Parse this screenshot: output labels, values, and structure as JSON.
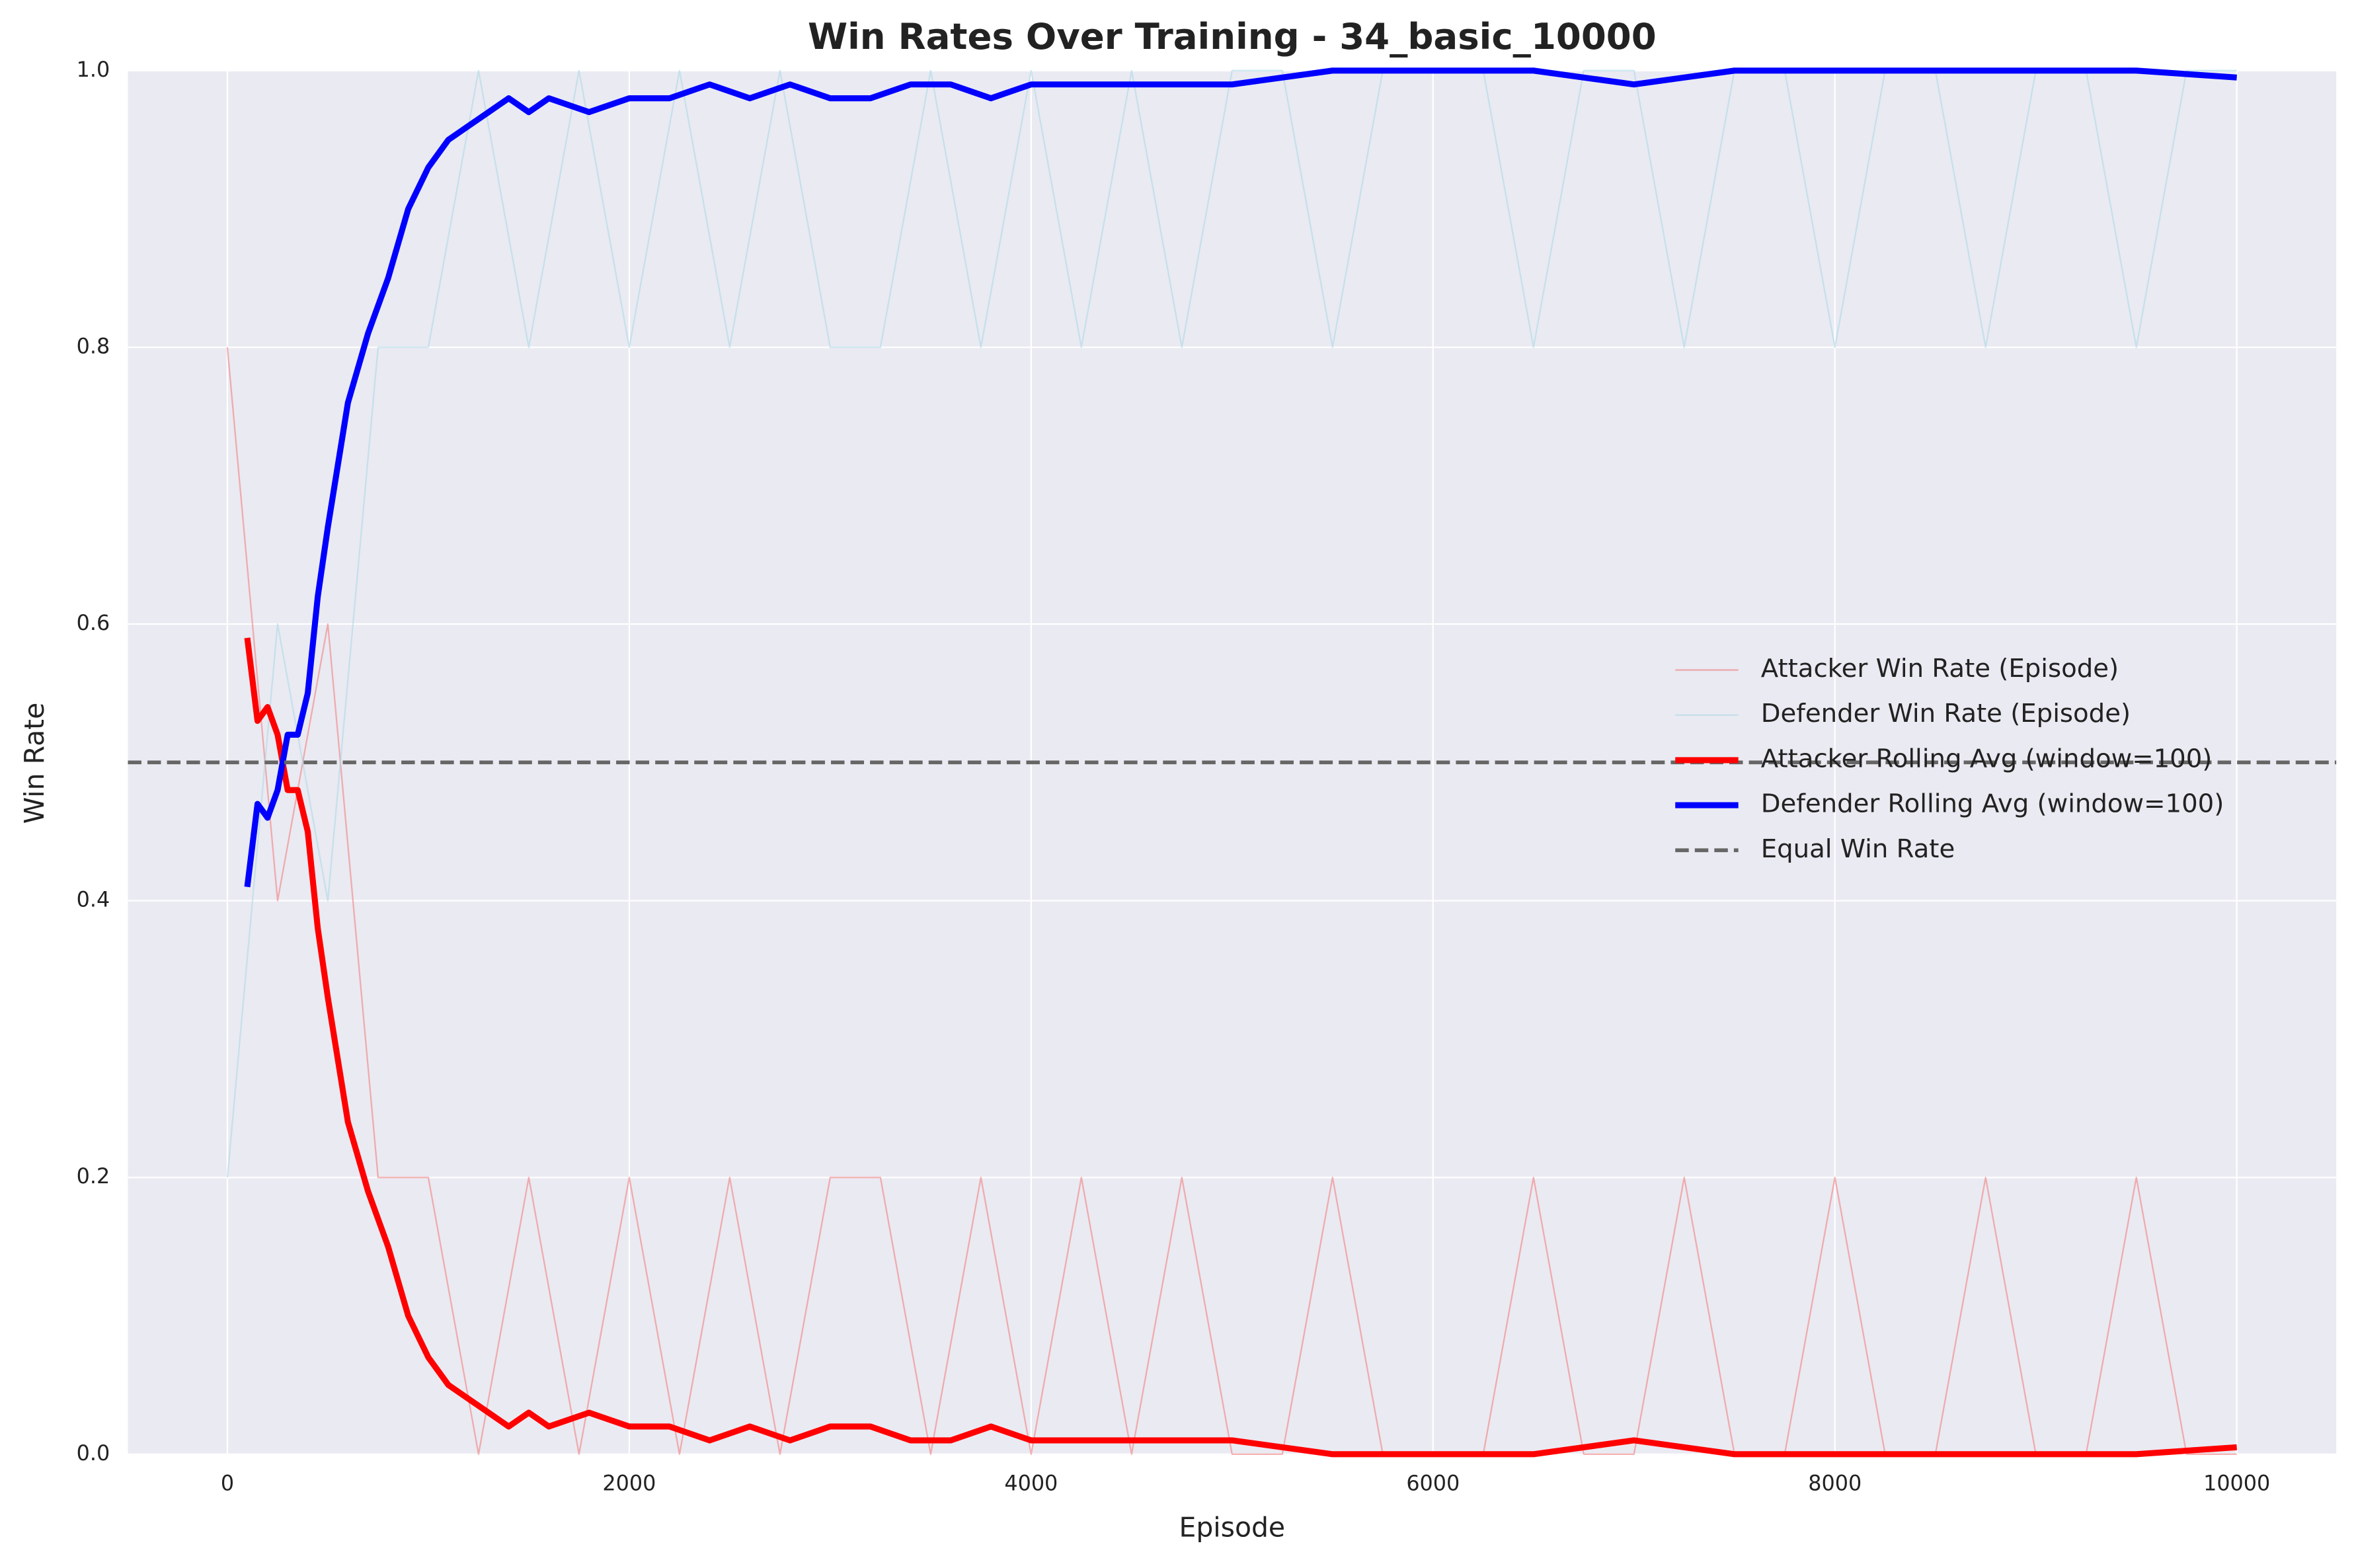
{
  "chart_data": {
    "type": "line",
    "title": "Win Rates Over Training - 34_basic_10000",
    "xlabel": "Episode",
    "ylabel": "Win Rate",
    "xlim": [
      -495,
      10495
    ],
    "xticks": [
      0,
      2000,
      4000,
      6000,
      8000,
      10000
    ],
    "ylim": [
      0,
      1
    ],
    "yticks": [
      {
        "value": 0,
        "label": "0.0"
      },
      {
        "value": 0.2,
        "label": "0.2"
      },
      {
        "value": 0.4,
        "label": "0.4"
      },
      {
        "value": 0.6,
        "label": "0.6"
      },
      {
        "value": 0.8,
        "label": "0.8"
      },
      {
        "value": 1,
        "label": "1.0"
      }
    ],
    "grid": true,
    "legend": "center right",
    "series": [
      {
        "name": "Attacker Win Rate (Episode)",
        "color": "#f08080",
        "width": 1,
        "opacity": 0.6,
        "x": [
          0,
          250,
          500,
          750,
          1000,
          1250,
          1500,
          1750,
          2000,
          2250,
          2500,
          2750,
          3000,
          3250,
          3500,
          3750,
          4000,
          4250,
          4500,
          4750,
          5000,
          5250,
          5500,
          5750,
          6000,
          6250,
          6500,
          6750,
          7000,
          7250,
          7500,
          7750,
          8000,
          8250,
          8500,
          8750,
          9000,
          9250,
          9500,
          9750,
          10000
        ],
        "values": [
          0.8,
          0.4,
          0.6,
          0.2,
          0.2,
          0,
          0.2,
          0,
          0.2,
          0,
          0.2,
          0,
          0.2,
          0.2,
          0,
          0.2,
          0,
          0.2,
          0,
          0.2,
          0,
          0,
          0.2,
          0,
          0,
          0,
          0.2,
          0,
          0,
          0.2,
          0,
          0,
          0.2,
          0,
          0,
          0.2,
          0,
          0,
          0.2,
          0,
          0
        ]
      },
      {
        "name": "Defender Win Rate (Episode)",
        "color": "#add8e6",
        "width": 1,
        "opacity": 0.6,
        "x": [
          0,
          250,
          500,
          750,
          1000,
          1250,
          1500,
          1750,
          2000,
          2250,
          2500,
          2750,
          3000,
          3250,
          3500,
          3750,
          4000,
          4250,
          4500,
          4750,
          5000,
          5250,
          5500,
          5750,
          6000,
          6250,
          6500,
          6750,
          7000,
          7250,
          7500,
          7750,
          8000,
          8250,
          8500,
          8750,
          9000,
          9250,
          9500,
          9750,
          10000
        ],
        "values": [
          0.2,
          0.6,
          0.4,
          0.8,
          0.8,
          1,
          0.8,
          1,
          0.8,
          1,
          0.8,
          1,
          0.8,
          0.8,
          1,
          0.8,
          1,
          0.8,
          1,
          0.8,
          1,
          1,
          0.8,
          1,
          1,
          1,
          0.8,
          1,
          1,
          0.8,
          1,
          1,
          0.8,
          1,
          1,
          0.8,
          1,
          1,
          0.8,
          1,
          1
        ]
      },
      {
        "name": "Attacker Rolling Avg (window=100)",
        "color": "#ff0000",
        "width": 4,
        "opacity": 1,
        "x": [
          99,
          150,
          200,
          250,
          300,
          350,
          400,
          450,
          500,
          600,
          700,
          800,
          900,
          1000,
          1100,
          1200,
          1300,
          1400,
          1500,
          1600,
          1800,
          2000,
          2200,
          2400,
          2600,
          2800,
          3000,
          3200,
          3400,
          3600,
          3800,
          4000,
          4200,
          4400,
          4600,
          4800,
          5000,
          5500,
          6000,
          6500,
          7000,
          7500,
          8000,
          8500,
          9000,
          9500,
          10000
        ],
        "values": [
          0.59,
          0.53,
          0.54,
          0.52,
          0.48,
          0.48,
          0.45,
          0.38,
          0.33,
          0.24,
          0.19,
          0.15,
          0.1,
          0.07,
          0.05,
          0.04,
          0.03,
          0.02,
          0.03,
          0.02,
          0.03,
          0.02,
          0.02,
          0.01,
          0.02,
          0.01,
          0.02,
          0.02,
          0.01,
          0.01,
          0.02,
          0.01,
          0.01,
          0.01,
          0.01,
          0.01,
          0.01,
          0,
          0,
          0,
          0.01,
          0,
          0,
          0,
          0,
          0,
          0.005
        ]
      },
      {
        "name": "Defender Rolling Avg (window=100)",
        "color": "#0000ff",
        "width": 4,
        "opacity": 1,
        "x": [
          99,
          150,
          200,
          250,
          300,
          350,
          400,
          450,
          500,
          600,
          700,
          800,
          900,
          1000,
          1100,
          1200,
          1300,
          1400,
          1500,
          1600,
          1800,
          2000,
          2200,
          2400,
          2600,
          2800,
          3000,
          3200,
          3400,
          3600,
          3800,
          4000,
          4200,
          4400,
          4600,
          4800,
          5000,
          5500,
          6000,
          6500,
          7000,
          7500,
          8000,
          8500,
          9000,
          9500,
          10000
        ],
        "values": [
          0.41,
          0.47,
          0.46,
          0.48,
          0.52,
          0.52,
          0.55,
          0.62,
          0.67,
          0.76,
          0.81,
          0.85,
          0.9,
          0.93,
          0.95,
          0.96,
          0.97,
          0.98,
          0.97,
          0.98,
          0.97,
          0.98,
          0.98,
          0.99,
          0.98,
          0.99,
          0.98,
          0.98,
          0.99,
          0.99,
          0.98,
          0.99,
          0.99,
          0.99,
          0.99,
          0.99,
          0.99,
          1,
          1,
          1,
          0.99,
          1,
          1,
          1,
          1,
          1,
          0.995
        ]
      }
    ],
    "reference_line": {
      "name": "Equal Win Rate",
      "y": 0.5,
      "color": "#666666"
    }
  }
}
